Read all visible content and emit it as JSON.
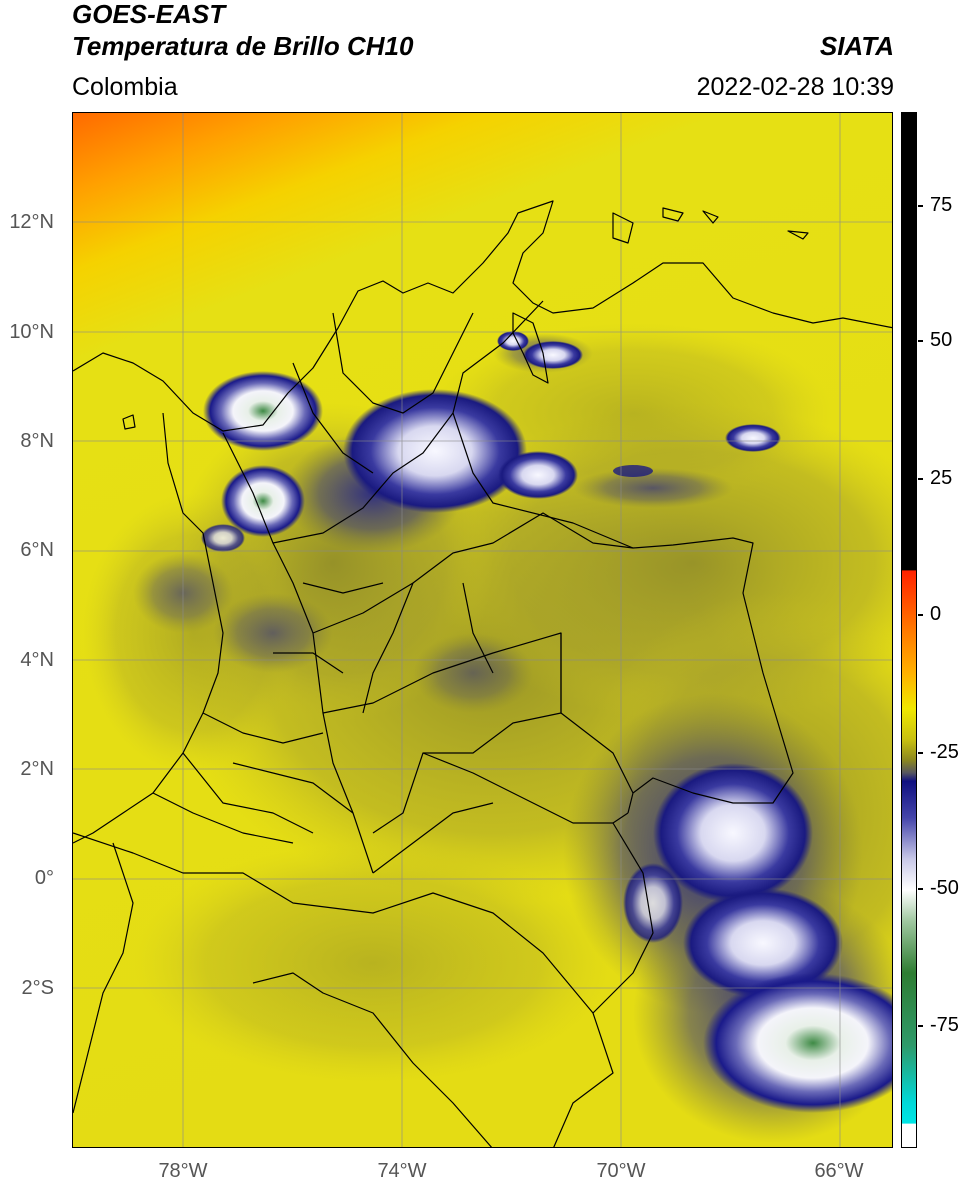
{
  "header": {
    "satellite": "GOES-EAST",
    "product": "Temperatura de Brillo CH10",
    "region": "Colombia",
    "source": "SIATA",
    "datetime": "2022-02-28 10:39"
  },
  "map": {
    "latitude_labels": [
      "12°N",
      "10°N",
      "8°N",
      "6°N",
      "4°N",
      "2°N",
      "0°",
      "2°S"
    ],
    "longitude_labels": [
      "78°W",
      "74°W",
      "70°W",
      "66°W"
    ],
    "colors": {
      "warm_top": "#ff7a00",
      "yellow": "#e8e012",
      "olive": "#a8a22a",
      "navy": "#1a1a8c",
      "white": "#f4f4f4",
      "green": "#3f8f4a",
      "borders": "#000000",
      "grid": "#8a8a8a"
    }
  },
  "colorbar": {
    "tick_labels": [
      "75",
      "50",
      "25",
      "0",
      "-25",
      "-50",
      "-75"
    ],
    "colors": {
      "black": "#000000",
      "red": "#ff2a00",
      "orange": "#ff9900",
      "yellow": "#f0e800",
      "olive": "#8a8620",
      "navy": "#101080",
      "white": "#ffffff",
      "green": "#2e7d32",
      "cyan": "#00e5e5"
    }
  }
}
